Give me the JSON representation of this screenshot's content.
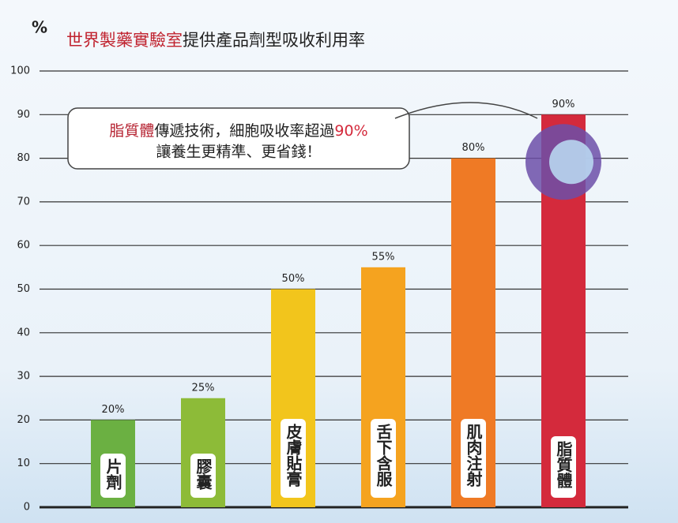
{
  "chart_data": {
    "type": "bar",
    "title": {
      "highlight": "世界製藥實驗室",
      "text": "提供產品劑型吸收利用率"
    },
    "y_label": "%",
    "categories": [
      "片劑",
      "膠囊",
      "皮膚貼膏",
      "舌下含服",
      "肌肉注射",
      "脂質體"
    ],
    "values": [
      20,
      25,
      50,
      55,
      80,
      90
    ],
    "value_labels": [
      "20%",
      "25%",
      "50%",
      "55%",
      "80%",
      "90%"
    ],
    "colors": [
      "#6bb042",
      "#8dbb38",
      "#f2c51c",
      "#f5a31f",
      "#ef7a25",
      "#d42a3c"
    ],
    "ylim": [
      0,
      100
    ],
    "yticks": [
      0,
      10,
      20,
      30,
      40,
      50,
      60,
      70,
      80,
      90,
      100
    ],
    "grid": true,
    "annotation": {
      "line1": [
        "脂質體",
        "傳遞技術，細胞吸收率超過",
        "90%"
      ],
      "line2": "讓養生更精準、更省錢！"
    }
  }
}
